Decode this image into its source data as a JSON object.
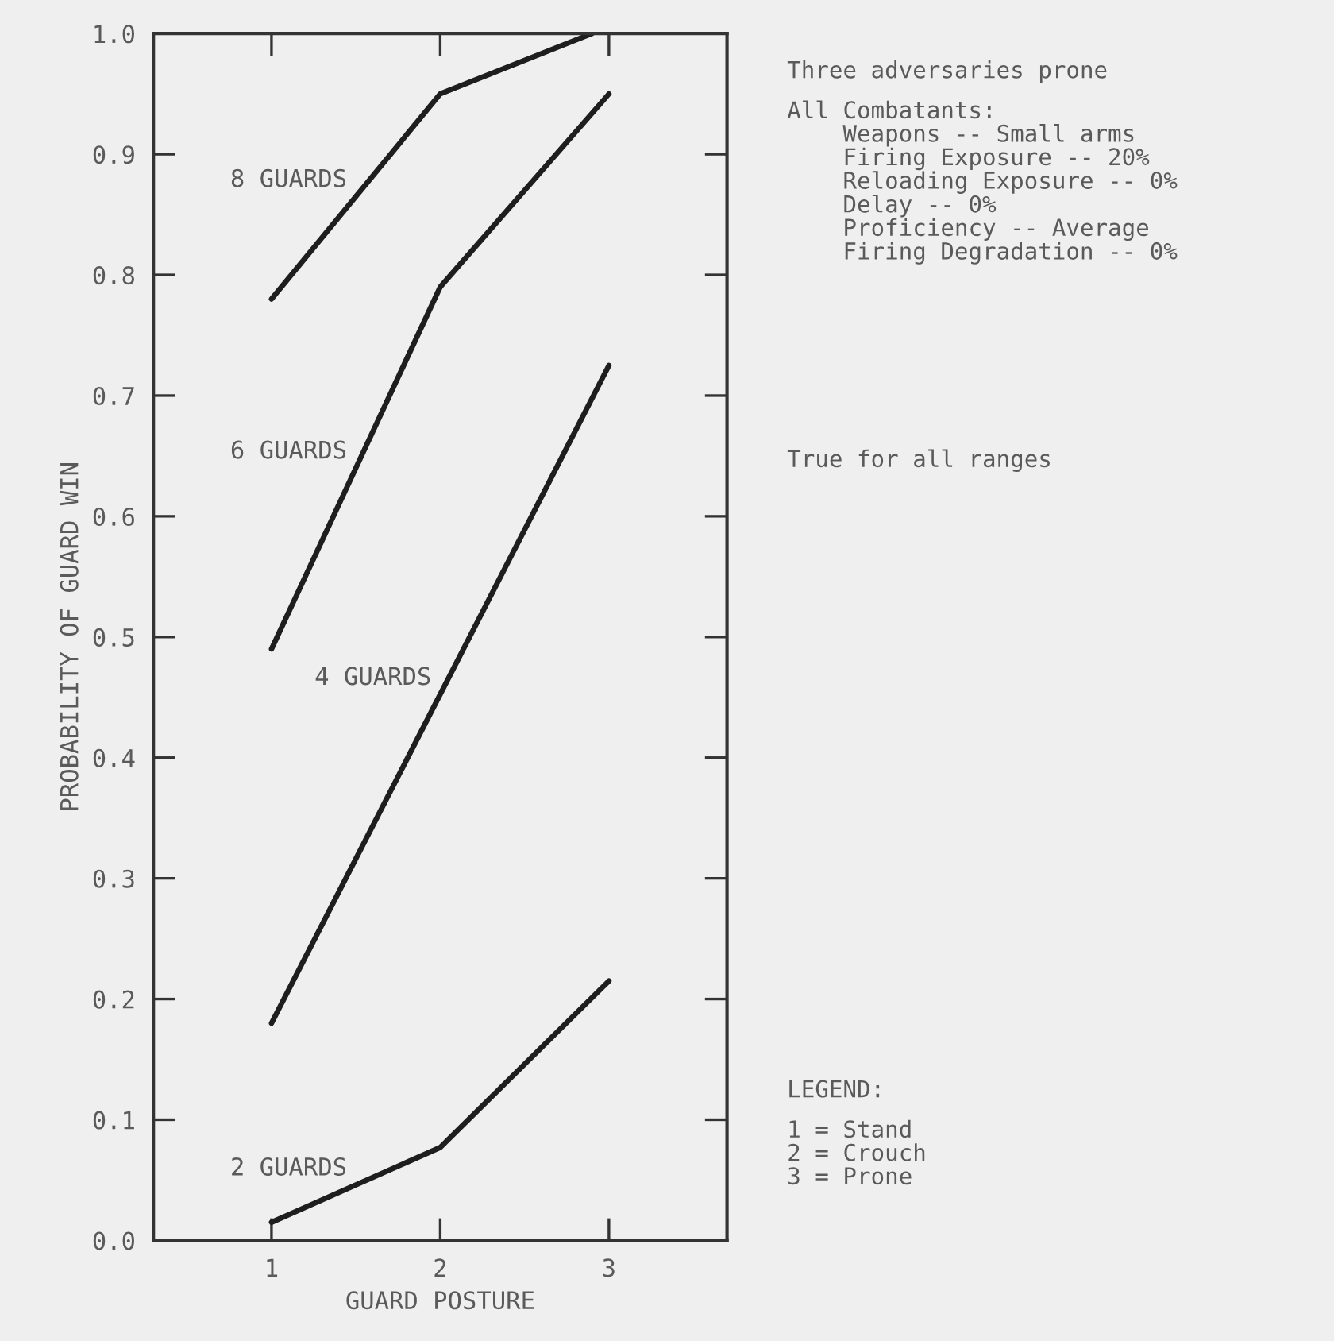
{
  "chart_data": {
    "type": "line",
    "xlabel": "GUARD POSTURE",
    "ylabel": "PROBABILITY OF GUARD WIN",
    "xlim": [
      0.3,
      3.7
    ],
    "xticks": [
      1,
      2,
      3
    ],
    "ylim": [
      0.0,
      1.0
    ],
    "yticks": [
      {
        "value": 0.0,
        "label": "0.0"
      },
      {
        "value": 0.1,
        "label": "0.1"
      },
      {
        "value": 0.2,
        "label": "0.2"
      },
      {
        "value": 0.3,
        "label": "0.3"
      },
      {
        "value": 0.4,
        "label": "0.4"
      },
      {
        "value": 0.5,
        "label": "0.5"
      },
      {
        "value": 0.6,
        "label": "0.6"
      },
      {
        "value": 0.7,
        "label": "0.7"
      },
      {
        "value": 0.8,
        "label": "0.8"
      },
      {
        "value": 0.9,
        "label": "0.9"
      },
      {
        "value": 1.0,
        "label": "1.0"
      }
    ],
    "grid": false,
    "marker": "none",
    "line_style": "solid",
    "series": [
      {
        "name": "8 GUARDS",
        "color": "#1e1e1e",
        "x": [
          1,
          2,
          2.9
        ],
        "values": [
          0.78,
          0.95,
          1.0
        ]
      },
      {
        "name": "6 GUARDS",
        "color": "#1e1e1e",
        "x": [
          1,
          2,
          3
        ],
        "values": [
          0.49,
          0.79,
          0.95
        ]
      },
      {
        "name": "4 GUARDS",
        "color": "#1e1e1e",
        "x": [
          1,
          3
        ],
        "values": [
          0.18,
          0.725
        ]
      },
      {
        "name": "2 GUARDS",
        "color": "#1e1e1e",
        "x": [
          1,
          2,
          3
        ],
        "values": [
          0.015,
          0.077,
          0.215
        ]
      }
    ],
    "annotations": [
      "Three adversaries prone",
      "All Combatants:\n    Weapons -- Small arms\n    Firing Exposure -- 20%\n    Reloading Exposure -- 0%\n    Delay -- 0%\n    Proficiency -- Average\n    Firing Degradation -- 0%",
      "True for all ranges",
      "LEGEND:",
      "1 = Stand\n2 = Crouch\n3 = Prone"
    ]
  }
}
